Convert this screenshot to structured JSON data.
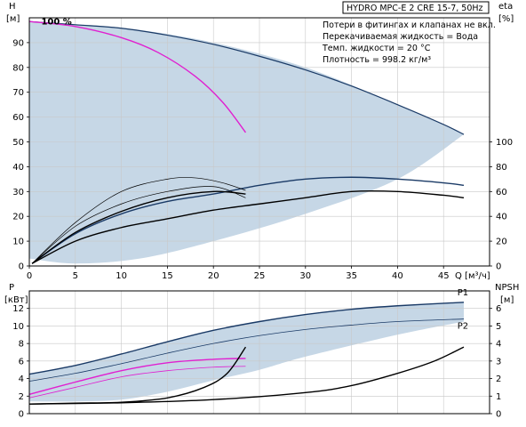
{
  "title_box": "HYDRO MPC-E 2 CRE 15-7, 50Hz",
  "notes": [
    "Потери в фитингах и клапанах не вкл.",
    "Перекачиваемая жидкость = Вода",
    "Темп. жидкости = 20 °C",
    "Плотность = 998.2 кг/м³"
  ],
  "colors": {
    "curve": "#1a3a66",
    "area": "#c6d7e6",
    "grid": "#c8c8c8",
    "magenta": "#e020d0",
    "black": "#000000"
  },
  "chart_data": [
    {
      "type": "line",
      "name": "head-efficiency",
      "xlabel": "Q [м³/ч]",
      "ylabel": "H [м]",
      "y2label": "eta [%]",
      "xlim": [
        0,
        50
      ],
      "ylim": [
        0,
        100
      ],
      "y2lim": [
        0,
        200
      ],
      "grid": true,
      "xticks": [
        0,
        5,
        10,
        15,
        20,
        25,
        30,
        35,
        40,
        45
      ],
      "yticks": [
        0,
        10,
        20,
        30,
        40,
        50,
        60,
        70,
        80,
        90
      ],
      "y2ticks": [
        0,
        20,
        40,
        60,
        80,
        100
      ],
      "annotations": [
        {
          "text": "100 %",
          "x": 1.3,
          "y": 98
        }
      ],
      "range_area": {
        "upper": [
          [
            0,
            98.5
          ],
          [
            10,
            96
          ],
          [
            20,
            90
          ],
          [
            30,
            80
          ],
          [
            40,
            65
          ],
          [
            47.2,
            53
          ]
        ],
        "lower": [
          [
            0,
            3
          ],
          [
            5,
            1
          ],
          [
            12,
            3
          ],
          [
            20,
            10
          ],
          [
            30,
            21
          ],
          [
            40,
            35
          ],
          [
            47.2,
            53
          ]
        ]
      },
      "series": [
        {
          "curve": "max-head",
          "role": "outline",
          "points": [
            [
              0,
              98.5
            ],
            [
              5,
              97.2
            ],
            [
              10,
              95.8
            ],
            [
              15,
              93
            ],
            [
              20,
              89.3
            ],
            [
              25,
              84.5
            ],
            [
              30,
              79
            ],
            [
              35,
              72.5
            ],
            [
              40,
              65
            ],
            [
              45,
              57
            ],
            [
              47.2,
              53
            ]
          ]
        },
        {
          "curve": "head-one-pump",
          "role": "magenta",
          "points": [
            [
              0,
              98.5
            ],
            [
              5,
              96.5
            ],
            [
              10,
              92
            ],
            [
              14,
              86
            ],
            [
              18,
              76.5
            ],
            [
              21,
              66
            ],
            [
              23.5,
              53.8
            ]
          ]
        },
        {
          "curve": "eta-system-max",
          "role": "navy",
          "axis": "right",
          "points": [
            [
              0.3,
              2
            ],
            [
              5,
              26
            ],
            [
              10,
              42
            ],
            [
              15,
              52
            ],
            [
              20,
              58
            ],
            [
              25,
              65
            ],
            [
              30,
              70
            ],
            [
              35,
              71.5
            ],
            [
              40,
              70
            ],
            [
              45,
              67
            ],
            [
              47.2,
              65
            ]
          ]
        },
        {
          "curve": "eta-system",
          "role": "black",
          "axis": "right",
          "points": [
            [
              0.3,
              2
            ],
            [
              5,
              20
            ],
            [
              10,
              31
            ],
            [
              15,
              38
            ],
            [
              20,
              45
            ],
            [
              25,
              50
            ],
            [
              30,
              55
            ],
            [
              35,
              60
            ],
            [
              40,
              60
            ],
            [
              45,
              57
            ],
            [
              47.2,
              55
            ]
          ]
        },
        {
          "curve": "eta-one-pump-a",
          "role": "thin-black",
          "axis": "right",
          "points": [
            [
              0.3,
              2
            ],
            [
              5,
              32
            ],
            [
              10,
              50
            ],
            [
              15,
              60
            ],
            [
              20,
              64
            ],
            [
              23.5,
              55
            ]
          ]
        },
        {
          "curve": "eta-one-pump-b",
          "role": "black",
          "axis": "right",
          "points": [
            [
              0.3,
              2
            ],
            [
              5,
              27
            ],
            [
              10,
              44
            ],
            [
              15,
              55
            ],
            [
              20,
              60
            ],
            [
              23.5,
              58
            ]
          ]
        },
        {
          "curve": "eta-thin-arc",
          "role": "thin-black",
          "axis": "right",
          "points": [
            [
              0.3,
              2
            ],
            [
              5,
              35
            ],
            [
              10,
              60
            ],
            [
              15,
              70
            ],
            [
              18,
              71
            ],
            [
              21,
              67
            ],
            [
              23.5,
              61
            ]
          ]
        }
      ]
    },
    {
      "type": "line",
      "name": "power-npsh",
      "ylabel": "P [кВт]",
      "y2label": "NPSH [м]",
      "xlim": [
        0,
        50
      ],
      "ylim": [
        0,
        14
      ],
      "y2lim": [
        0,
        7
      ],
      "grid": true,
      "yticks": [
        0,
        2,
        4,
        6,
        8,
        10,
        12
      ],
      "y2ticks": [
        0,
        1,
        2,
        3,
        4,
        5,
        6
      ],
      "range_area": {
        "upper": [
          [
            0,
            4.5
          ],
          [
            5,
            5.5
          ],
          [
            10,
            6.8
          ],
          [
            15,
            8.2
          ],
          [
            20,
            9.5
          ],
          [
            25,
            10.5
          ],
          [
            30,
            11.3
          ],
          [
            35,
            11.9
          ],
          [
            40,
            12.3
          ],
          [
            47.2,
            12.7
          ]
        ],
        "lower": [
          [
            0,
            1.4
          ],
          [
            5,
            1.4
          ],
          [
            10,
            1.6
          ],
          [
            15,
            2.5
          ],
          [
            20,
            3.8
          ],
          [
            25,
            5
          ],
          [
            30,
            6.5
          ],
          [
            40,
            9
          ],
          [
            47.2,
            10.5
          ]
        ]
      },
      "series": [
        {
          "curve": "P1",
          "name": "P1",
          "role": "navy",
          "points": [
            [
              0,
              4.5
            ],
            [
              5,
              5.5
            ],
            [
              10,
              6.8
            ],
            [
              15,
              8.2
            ],
            [
              20,
              9.5
            ],
            [
              25,
              10.5
            ],
            [
              30,
              11.3
            ],
            [
              35,
              11.9
            ],
            [
              40,
              12.3
            ],
            [
              47.2,
              12.7
            ]
          ]
        },
        {
          "curve": "P2",
          "name": "P2",
          "role": "thin-navy",
          "points": [
            [
              0,
              3.7
            ],
            [
              5,
              4.6
            ],
            [
              10,
              5.7
            ],
            [
              15,
              6.9
            ],
            [
              20,
              8
            ],
            [
              25,
              8.9
            ],
            [
              30,
              9.6
            ],
            [
              35,
              10.1
            ],
            [
              40,
              10.5
            ],
            [
              47.2,
              10.8
            ]
          ]
        },
        {
          "curve": "P1-one-pump",
          "role": "magenta",
          "points": [
            [
              0,
              2.2
            ],
            [
              5,
              3.6
            ],
            [
              10,
              4.9
            ],
            [
              15,
              5.8
            ],
            [
              20,
              6.2
            ],
            [
              23.5,
              6.3
            ]
          ]
        },
        {
          "curve": "P2-one-pump",
          "role": "thin-magenta",
          "points": [
            [
              0,
              1.8
            ],
            [
              5,
              3
            ],
            [
              10,
              4.2
            ],
            [
              15,
              4.9
            ],
            [
              20,
              5.3
            ],
            [
              23.5,
              5.4
            ]
          ]
        },
        {
          "curve": "NPSH-one-pump",
          "role": "black",
          "axis": "right",
          "points": [
            [
              0,
              0.55
            ],
            [
              5,
              0.6
            ],
            [
              10,
              0.65
            ],
            [
              15,
              0.9
            ],
            [
              19,
              1.5
            ],
            [
              21.5,
              2.3
            ],
            [
              23.5,
              3.8
            ]
          ]
        },
        {
          "curve": "NPSH-system",
          "role": "black",
          "axis": "right",
          "points": [
            [
              0,
              0.55
            ],
            [
              10,
              0.62
            ],
            [
              20,
              0.8
            ],
            [
              30,
              1.2
            ],
            [
              35,
              1.6
            ],
            [
              40,
              2.3
            ],
            [
              44,
              3
            ],
            [
              47.2,
              3.8
            ]
          ]
        }
      ],
      "labels": [
        {
          "text": "P1",
          "x": 46.5,
          "y": 13.8
        },
        {
          "text": "P2",
          "x": 46.5,
          "y": 10
        }
      ]
    }
  ]
}
